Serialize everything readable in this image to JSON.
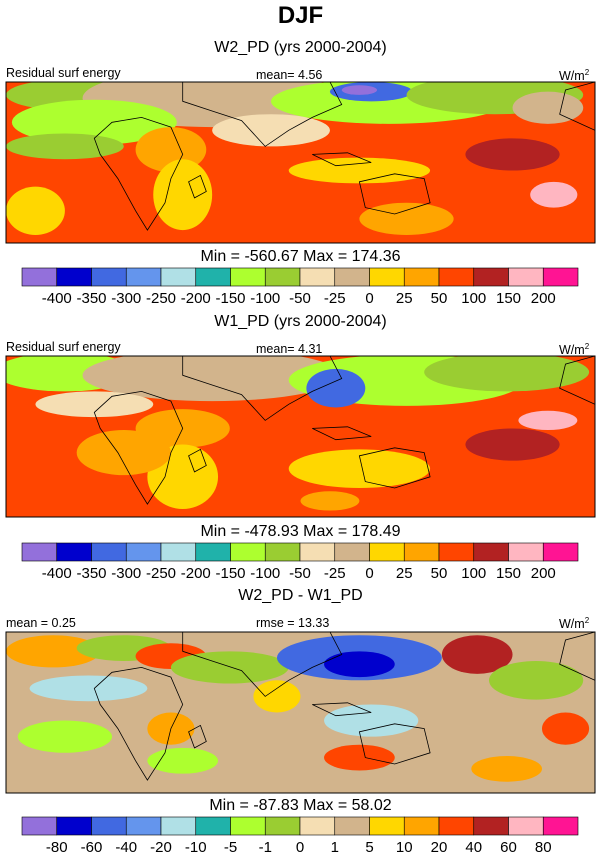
{
  "header": {
    "title": "DJF"
  },
  "panels": [
    {
      "title": "W2_PD (yrs 2000-2004)",
      "left_label": "Residual surf energy",
      "center_label": "mean=   4.56",
      "units_base": "W/m",
      "units_exp": "2",
      "minmax": "Min = -560.67 Max = 174.36"
    },
    {
      "title": "W1_PD (yrs 2000-2004)",
      "left_label": "Residual surf energy",
      "center_label": "mean=   4.31",
      "units_base": "W/m",
      "units_exp": "2",
      "minmax": "Min = -478.93 Max = 178.49"
    },
    {
      "title": "W2_PD - W1_PD",
      "left_label": "mean =   0.25",
      "center_label": "rmse =  13.33",
      "units_base": "W/m",
      "units_exp": "2",
      "minmax": "Min = -87.83 Max =  58.02"
    }
  ],
  "colors": {
    "palette": [
      "#9370db",
      "#0000cd",
      "#4169e1",
      "#6495ed",
      "#b0e0e6",
      "#20b2aa",
      "#adff2f",
      "#9acd32",
      "#f5deb3",
      "#d2b48c",
      "#ffd700",
      "#ffa500",
      "#ff4500",
      "#b22222",
      "#ffb6c1",
      "#ff1493"
    ],
    "land": "#d2b48c"
  },
  "chart_data": [
    {
      "type": "heatmap",
      "title": "W2_PD (yrs 2000-2004)",
      "variable": "Residual surf energy",
      "mean": 4.56,
      "min": -560.67,
      "max": 174.36,
      "units": "W/m2",
      "levels": [
        "-400",
        "-350",
        "-300",
        "-250",
        "-200",
        "-150",
        "-100",
        "-50",
        "-25",
        "0",
        "25",
        "50",
        "100",
        "150",
        "200"
      ]
    },
    {
      "type": "heatmap",
      "title": "W1_PD (yrs 2000-2004)",
      "variable": "Residual surf energy",
      "mean": 4.31,
      "min": -478.93,
      "max": 178.49,
      "units": "W/m2",
      "levels": [
        "-400",
        "-350",
        "-300",
        "-250",
        "-200",
        "-150",
        "-100",
        "-50",
        "-25",
        "0",
        "25",
        "50",
        "100",
        "150",
        "200"
      ]
    },
    {
      "type": "heatmap",
      "title": "W2_PD - W1_PD",
      "mean": 0.25,
      "rmse": 13.33,
      "min": -87.83,
      "max": 58.02,
      "units": "W/m2",
      "levels": [
        "-80",
        "-60",
        "-40",
        "-20",
        "-10",
        "-5",
        "-1",
        "0",
        "1",
        "5",
        "10",
        "20",
        "40",
        "60",
        "80"
      ]
    }
  ]
}
